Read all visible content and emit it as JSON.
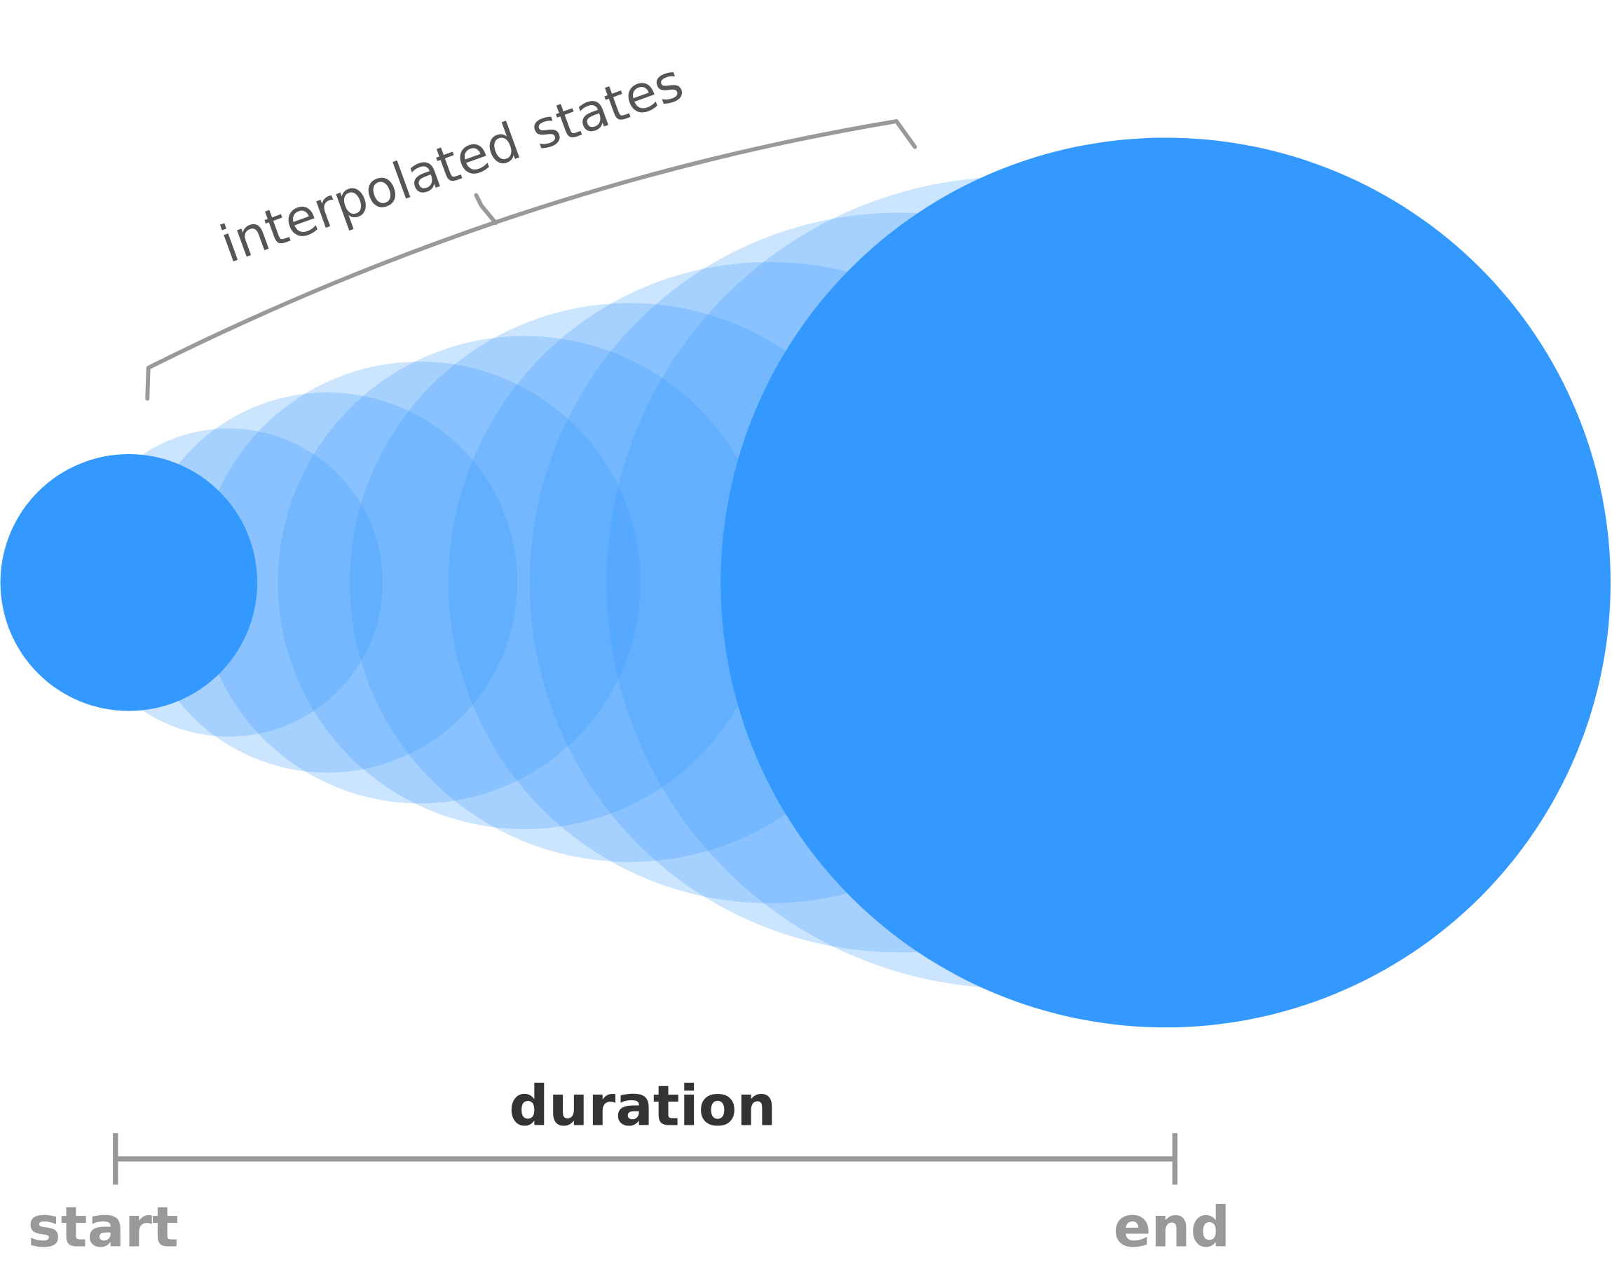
{
  "annotation": "interpolated states",
  "timeline": {
    "label": "duration",
    "start": "start",
    "end": "end"
  }
}
